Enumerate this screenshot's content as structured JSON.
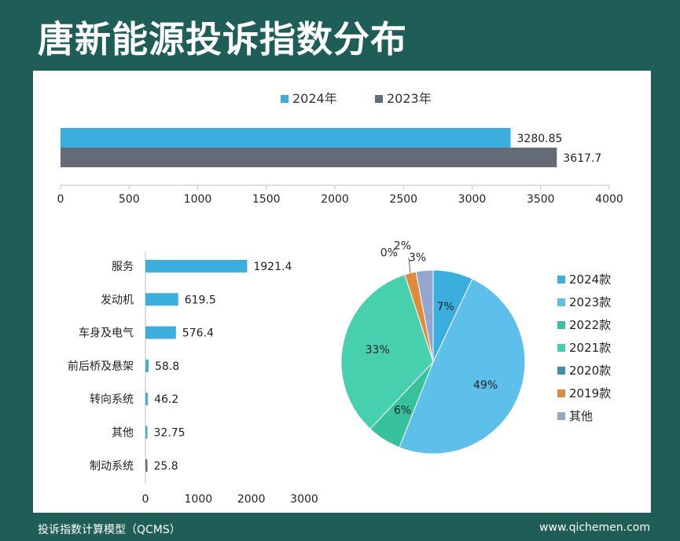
{
  "page": {
    "title": "唐新能源投诉指数分布",
    "footer_left": "投诉指数计算模型（QCMS）",
    "footer_right": "www.qichemen.com"
  },
  "chart_data": [
    {
      "type": "bar",
      "orientation": "horizontal",
      "series": [
        {
          "name": "2024年",
          "values": [
            3280.85
          ],
          "color": "#3aaedc"
        },
        {
          "name": "2023年",
          "values": [
            3617.7
          ],
          "color": "#646b76"
        }
      ],
      "data_labels": [
        "3280.85",
        "3617.7"
      ],
      "xlim": [
        0,
        4000
      ],
      "xticks": [
        0,
        500,
        1000,
        1500,
        2000,
        2500,
        3000,
        3500,
        4000
      ],
      "legend": "top"
    },
    {
      "type": "bar",
      "orientation": "horizontal",
      "categories": [
        "服务",
        "发动机",
        "车身及电气",
        "前后桥及悬架",
        "转向系统",
        "其他",
        "制动系统"
      ],
      "values": [
        1921.4,
        619.5,
        576.4,
        58.8,
        46.2,
        32.75,
        25.8
      ],
      "data_labels": [
        "1921.4",
        "619.5",
        "576.4",
        "58.8",
        "46.2",
        "32.75",
        "25.8"
      ],
      "colors": [
        "#3aaedc",
        "#3aaedc",
        "#3aaedc",
        "#3aaedc",
        "#3aaedc",
        "#3aaedc",
        "#646b76"
      ],
      "xlim": [
        0,
        3000
      ],
      "xticks": [
        0,
        1000,
        2000,
        3000
      ]
    },
    {
      "type": "pie",
      "categories": [
        "2024款",
        "2023款",
        "2022款",
        "2021款",
        "2020款",
        "2019款",
        "其他"
      ],
      "values": [
        7,
        49,
        6,
        33,
        0,
        2,
        3
      ],
      "labels": [
        "7%",
        "49%",
        "6%",
        "33%",
        "0%",
        "2%",
        "3%"
      ],
      "colors": [
        "#3aaedc",
        "#5cc0ea",
        "#35c29d",
        "#47d0ad",
        "#3e8fa6",
        "#e08a3c",
        "#93a6cf"
      ],
      "legend": "right"
    }
  ]
}
